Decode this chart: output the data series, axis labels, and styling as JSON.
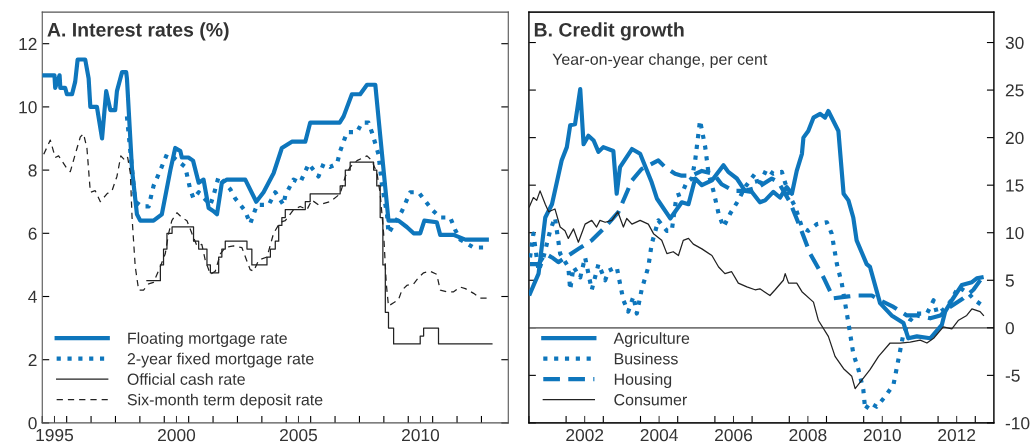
{
  "chart_data": [
    {
      "type": "line",
      "title": "A. Interest rates (%)",
      "legend": "bottom left",
      "xlim": [
        1995,
        2014.1
      ],
      "ylim": [
        0,
        13
      ],
      "xticks": [
        {
          "value": 1995,
          "label": null
        },
        {
          "value": 1996,
          "label": null
        },
        {
          "value": 1997,
          "label": null
        },
        {
          "value": 1998,
          "label": null
        },
        {
          "value": 1999,
          "label": null
        },
        {
          "value": 2000,
          "label": null
        },
        {
          "value": 2001,
          "label": null
        },
        {
          "value": 2002,
          "label": null
        },
        {
          "value": 2003,
          "label": null
        },
        {
          "value": 2004,
          "label": null
        },
        {
          "value": 2005,
          "label": null
        },
        {
          "value": 2006,
          "label": null
        },
        {
          "value": 2007,
          "label": null
        },
        {
          "value": 2008,
          "label": null
        },
        {
          "value": 2009,
          "label": null
        },
        {
          "value": 2010,
          "label": null
        },
        {
          "value": 2011,
          "label": null
        },
        {
          "value": 2012,
          "label": null
        },
        {
          "value": 2013,
          "label": null
        },
        {
          "value": 1995.5,
          "label": "1995"
        },
        {
          "value": 2000.5,
          "label": "2000"
        },
        {
          "value": 2005.5,
          "label": "2005"
        },
        {
          "value": 2010.5,
          "label": "2010"
        }
      ],
      "yticks": [
        0,
        2,
        4,
        6,
        8,
        10,
        12
      ],
      "series": [
        {
          "name": "Floating mortgage rate",
          "color": "#0e76bc",
          "line_style": "solid",
          "x": [
            1995.06,
            1995.5,
            1995.53,
            1995.71,
            1995.74,
            1995.94,
            1996.01,
            1996.22,
            1996.35,
            1996.45,
            1996.76,
            1996.9,
            1996.97,
            1997.24,
            1997.45,
            1997.62,
            1997.79,
            1997.99,
            1998.06,
            1998.27,
            1998.44,
            1998.47,
            1998.68,
            1998.88,
            1999.02,
            1999.56,
            1999.9,
            2000.25,
            2000.45,
            2000.66,
            2000.72,
            2000.99,
            2001.18,
            2001.41,
            2001.61,
            2001.82,
            2002.02,
            2002.16,
            2002.36,
            2002.57,
            2003.32,
            2003.77,
            2004.07,
            2004.48,
            2004.82,
            2005.23,
            2005.78,
            2005.98,
            2007.19,
            2007.35,
            2007.69,
            2008.03,
            2008.31,
            2008.65,
            2008.85,
            2009.19,
            2009.6,
            2009.94,
            2010.22,
            2010.49,
            2010.66,
            2011.17,
            2011.31,
            2011.86,
            2012.34,
            2013.22
          ],
          "values": [
            11.0,
            11.0,
            10.6,
            11.0,
            10.6,
            10.6,
            10.4,
            10.4,
            10.8,
            11.5,
            11.5,
            10.9,
            10.0,
            10.0,
            9.0,
            10.5,
            9.9,
            9.9,
            10.5,
            11.1,
            11.1,
            10.9,
            8.0,
            6.6,
            6.4,
            6.4,
            6.6,
            8.0,
            8.7,
            8.6,
            8.4,
            8.4,
            8.3,
            7.6,
            7.7,
            6.8,
            6.7,
            6.6,
            7.6,
            7.7,
            7.7,
            7.0,
            7.3,
            7.9,
            8.7,
            8.9,
            8.9,
            9.5,
            9.5,
            9.7,
            10.4,
            10.4,
            10.7,
            10.7,
            9.1,
            6.4,
            6.4,
            6.2,
            6.0,
            6.0,
            6.4,
            6.35,
            5.95,
            5.95,
            5.8,
            5.8
          ]
        },
        {
          "name": "2-year fixed mortgage rate",
          "color": "#0e76bc",
          "line_style": "dotted",
          "x": [
            1998.47,
            1998.81,
            1999.09,
            1999.36,
            1999.56,
            1999.84,
            2000.11,
            2000.38,
            2000.86,
            2001.06,
            2001.2,
            2001.41,
            2001.89,
            2002.02,
            2002.23,
            2002.7,
            2002.91,
            2003.12,
            2003.32,
            2003.52,
            2003.8,
            2004.28,
            2004.55,
            2004.89,
            2004.96,
            2005.3,
            2005.57,
            2005.92,
            2006.32,
            2006.53,
            2006.8,
            2007.08,
            2007.21,
            2007.49,
            2007.9,
            2008.1,
            2008.37,
            2008.51,
            2008.78,
            2008.92,
            2009.13,
            2009.19,
            2009.74,
            2010.08,
            2010.42,
            2010.97,
            2011.31,
            2011.72,
            2011.93,
            2012.13,
            2012.68,
            2013.09
          ],
          "values": [
            9.7,
            7.0,
            6.85,
            6.85,
            7.5,
            8.0,
            8.5,
            8.4,
            8.1,
            7.4,
            7.1,
            7.3,
            6.9,
            7.2,
            7.8,
            7.4,
            7.1,
            6.9,
            6.7,
            6.3,
            6.9,
            6.9,
            7.3,
            6.9,
            7.2,
            7.7,
            7.6,
            8.2,
            7.8,
            8.2,
            8.1,
            8.2,
            8.6,
            9.2,
            9.2,
            9.5,
            9.5,
            9.2,
            8.5,
            7.55,
            6.6,
            6.0,
            6.7,
            7.3,
            7.3,
            6.75,
            6.5,
            6.5,
            6.1,
            5.8,
            5.55,
            5.55
          ]
        },
        {
          "name": "Official cash rate",
          "color": "#222222",
          "type": "step",
          "line_style": "solid",
          "x": [
            1999.29,
            1999.84,
            1999.97,
            2000.11,
            2000.32,
            2001.2,
            2001.41,
            2001.75,
            2001.89,
            2002.23,
            2002.36,
            2002.5,
            2003.39,
            2003.59,
            2004.21,
            2004.35,
            2004.55,
            2004.69,
            2004.82,
            2004.96,
            2005.78,
            2005.98,
            2007.21,
            2007.42,
            2007.62,
            2008.58,
            2008.71,
            2008.85,
            2008.96,
            2009.06,
            2009.19,
            2009.4,
            2010.49,
            2010.63,
            2011.24,
            2013.43
          ],
          "values": [
            4.5,
            5.0,
            5.5,
            6.0,
            6.2,
            5.75,
            5.5,
            5.0,
            4.75,
            5.25,
            5.5,
            5.75,
            5.5,
            5.0,
            5.25,
            5.5,
            5.75,
            6.25,
            6.5,
            6.75,
            7.0,
            7.25,
            7.5,
            8.0,
            8.25,
            8.0,
            7.5,
            6.5,
            5.0,
            3.5,
            3.0,
            2.5,
            2.75,
            3.0,
            2.5,
            2.5
          ]
        },
        {
          "name": "Six-month term deposit rate",
          "color": "#222222",
          "line_style": "dashed",
          "x": [
            1995.06,
            1995.33,
            1995.53,
            1995.67,
            1996.01,
            1996.15,
            1996.35,
            1996.56,
            1996.69,
            1996.83,
            1996.97,
            1997.17,
            1997.38,
            1997.65,
            1997.86,
            1998.06,
            1998.22,
            1998.4,
            1998.5,
            1998.61,
            1998.68,
            1998.81,
            1998.95,
            1999.15,
            1999.36,
            1999.56,
            1999.84,
            2000.04,
            2000.18,
            2000.31,
            2000.52,
            2000.72,
            2000.93,
            2001.13,
            2001.34,
            2001.54,
            2001.68,
            2001.89,
            2002.09,
            2002.3,
            2002.5,
            2002.84,
            2003.18,
            2003.52,
            2003.66,
            2003.87,
            2004.21,
            2004.48,
            2004.75,
            2004.96,
            2005.3,
            2005.57,
            2005.85,
            2006.05,
            2006.32,
            2006.8,
            2007.21,
            2007.42,
            2007.62,
            2007.9,
            2008.31,
            2008.51,
            2008.72,
            2008.85,
            2008.99,
            2009.1,
            2009.19,
            2009.4,
            2009.6,
            2009.74,
            2009.94,
            2010.22,
            2010.42,
            2010.63,
            2010.9,
            2011.17,
            2011.31,
            2011.58,
            2011.86,
            2012.13,
            2012.34,
            2012.68,
            2012.95,
            2013.22
          ],
          "values": [
            8.5,
            8.95,
            8.4,
            8.45,
            8.05,
            7.95,
            8.5,
            9.05,
            9.15,
            8.7,
            7.3,
            7.35,
            7.0,
            7.25,
            7.35,
            7.8,
            8.45,
            8.3,
            8.4,
            7.9,
            6.5,
            4.95,
            4.2,
            4.2,
            4.4,
            4.45,
            4.95,
            5.35,
            6.0,
            6.4,
            6.65,
            6.5,
            6.4,
            6.0,
            5.6,
            5.65,
            5.15,
            4.7,
            4.8,
            5.35,
            5.55,
            5.6,
            5.55,
            4.85,
            4.8,
            5.15,
            5.25,
            6.0,
            6.35,
            6.4,
            6.75,
            6.85,
            6.75,
            7.05,
            6.9,
            7.0,
            7.25,
            7.8,
            8.1,
            8.3,
            8.45,
            8.3,
            7.9,
            7.25,
            6.0,
            4.4,
            3.7,
            3.8,
            3.9,
            4.2,
            4.35,
            4.4,
            4.6,
            4.75,
            4.8,
            4.7,
            4.2,
            4.15,
            4.15,
            4.3,
            4.25,
            4.1,
            3.95,
            3.95
          ]
        }
      ]
    },
    {
      "type": "line",
      "title": "B. Credit growth",
      "subtitle": "Year-on-year change, per cent",
      "legend": "bottom left",
      "xlim": [
        2001,
        2013.5
      ],
      "y2lim": [
        -10,
        33.2
      ],
      "xticks": [
        {
          "value": 2001,
          "label": null
        },
        {
          "value": 2002,
          "label": null
        },
        {
          "value": 2003,
          "label": null
        },
        {
          "value": 2004,
          "label": null
        },
        {
          "value": 2005,
          "label": null
        },
        {
          "value": 2006,
          "label": null
        },
        {
          "value": 2007,
          "label": null
        },
        {
          "value": 2008,
          "label": null
        },
        {
          "value": 2009,
          "label": null
        },
        {
          "value": 2010,
          "label": null
        },
        {
          "value": 2011,
          "label": null
        },
        {
          "value": 2012,
          "label": null
        },
        {
          "value": 2013,
          "label": null
        },
        {
          "value": 2002.5,
          "label": "2002"
        },
        {
          "value": 2004.5,
          "label": "2004"
        },
        {
          "value": 2006.5,
          "label": "2006"
        },
        {
          "value": 2008.5,
          "label": "2008"
        },
        {
          "value": 2010.5,
          "label": "2010"
        },
        {
          "value": 2012.5,
          "label": "2012"
        }
      ],
      "y2ticks": [
        -10,
        -5,
        0,
        5,
        10,
        15,
        20,
        25,
        30
      ],
      "ref_lines": [
        {
          "axis": "y2",
          "value": 0,
          "color": "#777777"
        }
      ],
      "series": [
        {
          "name": "Agriculture",
          "color": "#0e76bc",
          "axis": "y2",
          "line_style": "solid",
          "x": [
            2001.03,
            2001.26,
            2001.44,
            2001.62,
            2001.88,
            2002.02,
            2002.11,
            2002.24,
            2002.38,
            2002.47,
            2002.6,
            2002.74,
            2002.87,
            2003.0,
            2003.27,
            2003.36,
            2003.45,
            2003.77,
            2003.99,
            2004.3,
            2004.44,
            2004.8,
            2005.11,
            2005.29,
            2005.47,
            2005.65,
            2005.92,
            2006.23,
            2006.36,
            2006.59,
            2006.81,
            2006.99,
            2007.21,
            2007.35,
            2007.57,
            2007.75,
            2007.93,
            2008.07,
            2008.2,
            2008.34,
            2008.38,
            2008.51,
            2008.65,
            2008.83,
            2008.96,
            2009.05,
            2009.32,
            2009.46,
            2009.59,
            2009.72,
            2009.81,
            2010.08,
            2010.17,
            2010.44,
            2010.75,
            2011.07,
            2011.2,
            2011.43,
            2011.79,
            2012.1,
            2012.19,
            2012.37,
            2012.64,
            2012.91,
            2013.04,
            2013.17
          ],
          "values": [
            3.6,
            5.7,
            11.6,
            13.0,
            17.6,
            19.0,
            21.3,
            21.4,
            25.1,
            19.3,
            20.2,
            19.7,
            18.5,
            19.0,
            18.6,
            14.1,
            16.9,
            18.8,
            18.3,
            15.3,
            13.6,
            11.5,
            13.2,
            13.0,
            15.7,
            15.0,
            15.5,
            17.1,
            16.4,
            15.7,
            14.4,
            14.3,
            13.2,
            13.4,
            14.3,
            13.7,
            14.8,
            14.1,
            16.5,
            18.3,
            20.0,
            20.7,
            22.1,
            22.5,
            22.1,
            22.8,
            20.7,
            14.1,
            13.4,
            11.6,
            9.2,
            6.7,
            6.4,
            2.6,
            1.3,
            0.5,
            -1.1,
            -0.9,
            -1.1,
            0.3,
            1.7,
            2.9,
            4.5,
            4.8,
            5.2,
            5.3
          ]
        },
        {
          "name": "Business",
          "color": "#0e76bc",
          "axis": "y2",
          "line_style": "dotted",
          "x": [
            2001.03,
            2001.12,
            2001.26,
            2001.39,
            2001.57,
            2001.7,
            2001.84,
            2002.06,
            2002.11,
            2002.2,
            2002.38,
            2002.51,
            2002.69,
            2002.87,
            2003.05,
            2003.14,
            2003.36,
            2003.54,
            2003.67,
            2003.81,
            2003.9,
            2004.03,
            2004.21,
            2004.3,
            2004.48,
            2004.71,
            2004.84,
            2004.97,
            2005.11,
            2005.24,
            2005.38,
            2005.47,
            2005.6,
            2005.74,
            2005.83,
            2005.96,
            2006.1,
            2006.23,
            2006.41,
            2006.63,
            2006.81,
            2007.08,
            2007.17,
            2007.39,
            2007.57,
            2007.8,
            2007.98,
            2008.16,
            2008.34,
            2008.51,
            2008.74,
            2009.01,
            2009.14,
            2009.28,
            2009.41,
            2009.59,
            2009.72,
            2009.86,
            2009.99,
            2010.04,
            2010.17,
            2010.35,
            2010.58,
            2010.8,
            2010.93,
            2011.07,
            2011.25,
            2011.43,
            2011.7,
            2011.88,
            2011.97,
            2012.14,
            2012.32,
            2012.55,
            2012.82,
            2012.99,
            2013.17
          ],
          "values": [
            7.4,
            9.9,
            6.0,
            7.4,
            10.2,
            11.6,
            7.8,
            6.4,
            4.0,
            6.4,
            5.3,
            7.4,
            4.0,
            6.7,
            5.0,
            6.0,
            6.4,
            2.9,
            1.7,
            3.3,
            1.5,
            4.0,
            6.4,
            8.8,
            11.3,
            10.2,
            10.2,
            13.9,
            14.1,
            15.3,
            15.7,
            17.6,
            21.8,
            19.0,
            16.2,
            14.4,
            12.0,
            10.6,
            12.0,
            13.4,
            14.8,
            16.2,
            14.8,
            16.7,
            16.2,
            16.4,
            14.1,
            12.7,
            10.6,
            10.2,
            10.9,
            11.1,
            9.9,
            6.7,
            4.7,
            0.5,
            -2.7,
            -4.4,
            -6.5,
            -8.6,
            -7.9,
            -8.3,
            -7.2,
            -6.0,
            -3.4,
            -0.6,
            0.8,
            1.5,
            1.5,
            2.9,
            1.5,
            1.9,
            2.7,
            4.3,
            3.6,
            2.9,
            2.4
          ]
        },
        {
          "name": "Housing",
          "color": "#0e76bc",
          "axis": "y2",
          "line_style": "dashed",
          "x": [
            2001.03,
            2001.26,
            2001.44,
            2001.62,
            2001.79,
            2002.06,
            2002.33,
            2002.69,
            2003.05,
            2003.41,
            2003.77,
            2004.03,
            2004.48,
            2004.66,
            2004.93,
            2005.11,
            2005.38,
            2005.65,
            2005.96,
            2006.18,
            2006.5,
            2006.81,
            2007.17,
            2007.53,
            2007.71,
            2008.02,
            2008.29,
            2008.56,
            2008.92,
            2009.19,
            2009.59,
            2009.81,
            2010.22,
            2010.44,
            2010.8,
            2011.16,
            2011.43,
            2011.79,
            2012.06,
            2012.32,
            2012.68,
            2012.95,
            2013.17
          ],
          "values": [
            6.7,
            6.7,
            7.8,
            7.4,
            6.9,
            7.6,
            8.3,
            9.2,
            10.6,
            12.2,
            15.5,
            16.7,
            17.6,
            16.9,
            16.2,
            16.0,
            16.0,
            16.5,
            16.2,
            15.1,
            14.4,
            14.4,
            14.8,
            15.7,
            15.3,
            13.2,
            10.6,
            7.8,
            5.3,
            3.1,
            3.3,
            3.4,
            3.4,
            2.9,
            2.2,
            1.3,
            1.3,
            1.0,
            1.3,
            2.2,
            3.1,
            4.0,
            5.2
          ]
        },
        {
          "name": "Consumer",
          "color": "#222222",
          "axis": "y2",
          "line_style": "solid",
          "x": [
            2001.01,
            2001.12,
            2001.21,
            2001.3,
            2001.44,
            2001.53,
            2001.7,
            2001.84,
            2001.97,
            2002.06,
            2002.2,
            2002.33,
            2002.51,
            2002.69,
            2002.82,
            2002.91,
            2003.05,
            2003.23,
            2003.39,
            2003.54,
            2003.63,
            2003.77,
            2003.99,
            2004.21,
            2004.35,
            2004.57,
            2004.71,
            2004.88,
            2005.02,
            2005.15,
            2005.29,
            2005.42,
            2005.65,
            2005.92,
            2006.1,
            2006.27,
            2006.45,
            2006.63,
            2006.86,
            2007.08,
            2007.21,
            2007.48,
            2007.62,
            2007.84,
            2007.89,
            2007.98,
            2008.2,
            2008.34,
            2008.65,
            2008.78,
            2009.05,
            2009.23,
            2009.46,
            2009.68,
            2009.77,
            2009.95,
            2010.17,
            2010.4,
            2010.71,
            2010.98,
            2011.25,
            2011.52,
            2011.7,
            2011.88,
            2012.14,
            2012.37,
            2012.55,
            2012.77,
            2012.91,
            2013.13,
            2013.22
          ],
          "values": [
            12.7,
            13.7,
            13.4,
            14.4,
            13.0,
            12.2,
            12.5,
            10.6,
            10.2,
            9.4,
            10.4,
            9.0,
            10.9,
            11.3,
            10.6,
            11.3,
            11.1,
            11.3,
            12.2,
            10.6,
            11.5,
            10.9,
            11.3,
            10.9,
            9.9,
            9.2,
            7.8,
            8.0,
            7.6,
            9.2,
            9.4,
            8.8,
            8.3,
            7.6,
            6.4,
            5.7,
            5.9,
            4.7,
            4.3,
            4.0,
            4.1,
            3.4,
            4.0,
            5.0,
            5.7,
            4.7,
            4.7,
            3.8,
            2.7,
            0.8,
            -0.9,
            -3.0,
            -4.3,
            -5.1,
            -6.4,
            -5.5,
            -4.4,
            -3.0,
            -1.6,
            -1.6,
            -1.5,
            -1.3,
            -1.6,
            -1.1,
            0.1,
            -0.1,
            0.8,
            1.3,
            2.0,
            1.7,
            1.3
          ]
        }
      ]
    }
  ]
}
